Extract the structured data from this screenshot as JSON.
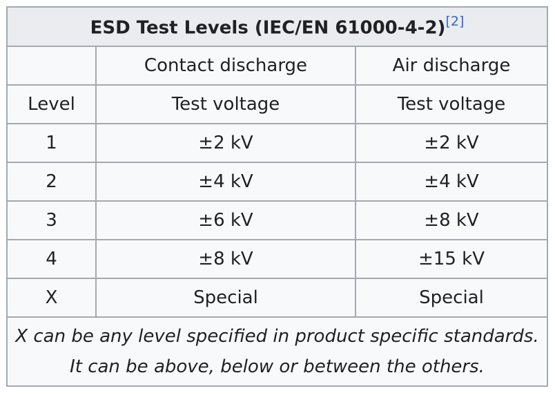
{
  "table": {
    "caption": "ESD Test Levels (IEC/EN 61000-4-2)",
    "caption_ref": "[2]",
    "header_row_1": [
      "",
      "Contact discharge",
      "Air discharge"
    ],
    "header_row_2": [
      "Level",
      "Test voltage",
      "Test voltage"
    ],
    "rows": [
      {
        "level": "1",
        "contact": "±2 kV",
        "air": "±2 kV"
      },
      {
        "level": "2",
        "contact": "±4 kV",
        "air": "±4 kV"
      },
      {
        "level": "3",
        "contact": "±6 kV",
        "air": "±8 kV"
      },
      {
        "level": "4",
        "contact": "±8 kV",
        "air": "±15 kV"
      },
      {
        "level": "X",
        "contact": "Special",
        "air": "Special"
      }
    ],
    "footnote_line_1": "X can be any level specified in product specific standards.",
    "footnote_line_2": "It can be above, below or between the others."
  },
  "colors": {
    "border": "#a2a9b1",
    "cell_background": "#f8f9fa",
    "caption_background": "#eaecf0",
    "link": "#3366cc",
    "text": "#202122"
  }
}
